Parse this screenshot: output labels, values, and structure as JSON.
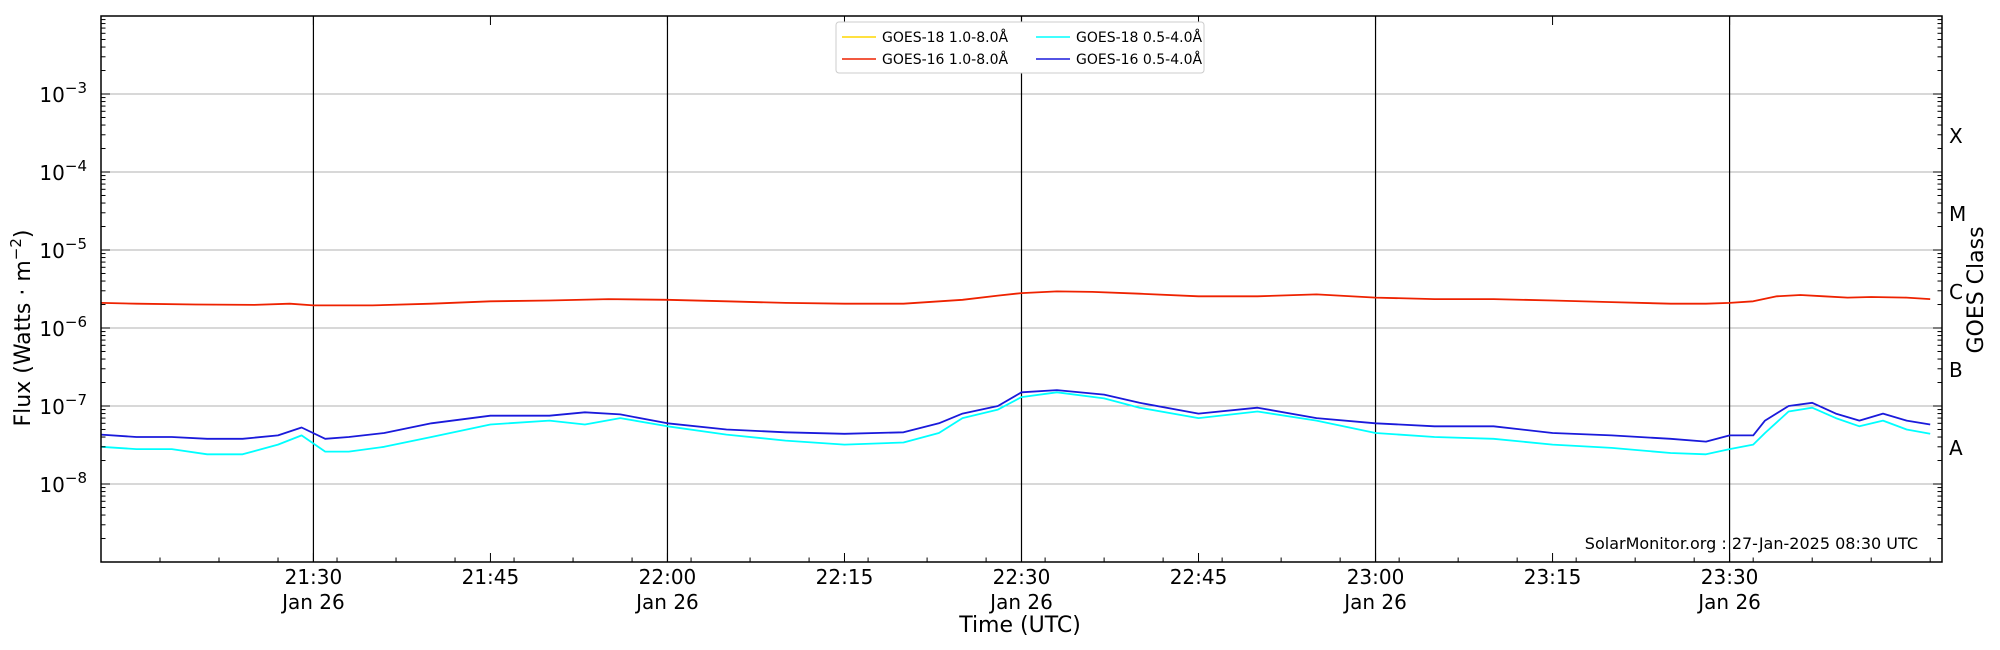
{
  "chart_data": {
    "type": "line",
    "x_scale": "time",
    "y_scale": "log",
    "xlabel": "Time (UTC)",
    "ylabel": "Flux (Watts · m",
    "ylabel_superscript": "−2",
    "ylabel_suffix": ")",
    "right_ylabel": "GOES Class",
    "xlim": [
      "2025-01-26 21:12",
      "2025-01-26 23:48"
    ],
    "ylim": [
      1e-09,
      0.01
    ],
    "grid": "horizontal at decades, vertical lines at half-hours",
    "legend_position": "top-center",
    "credit": "SolarMonitor.org : 27-Jan-2025 08:30 UTC",
    "x_ticks": [
      {
        "time": "2025-01-26 21:30",
        "label": "21:30",
        "date": "Jan 26"
      },
      {
        "time": "2025-01-26 21:45",
        "label": "21:45",
        "date": ""
      },
      {
        "time": "2025-01-26 22:00",
        "label": "22:00",
        "date": "Jan 26"
      },
      {
        "time": "2025-01-26 22:15",
        "label": "22:15",
        "date": ""
      },
      {
        "time": "2025-01-26 22:30",
        "label": "22:30",
        "date": "Jan 26"
      },
      {
        "time": "2025-01-26 22:45",
        "label": "22:45",
        "date": ""
      },
      {
        "time": "2025-01-26 23:00",
        "label": "23:00",
        "date": "Jan 26"
      },
      {
        "time": "2025-01-26 23:15",
        "label": "23:15",
        "date": ""
      },
      {
        "time": "2025-01-26 23:30",
        "label": "23:30",
        "date": "Jan 26"
      }
    ],
    "y_ticks": [
      {
        "value": 1e-08,
        "base": "10",
        "exp": "−8"
      },
      {
        "value": 1e-07,
        "base": "10",
        "exp": "−7"
      },
      {
        "value": 1e-06,
        "base": "10",
        "exp": "−6"
      },
      {
        "value": 1e-05,
        "base": "10",
        "exp": "−5"
      },
      {
        "value": 0.0001,
        "base": "10",
        "exp": "−4"
      },
      {
        "value": 0.001,
        "base": "10",
        "exp": "−3"
      }
    ],
    "goes_classes": [
      {
        "label": "A",
        "value": 3e-08
      },
      {
        "label": "B",
        "value": 3e-07
      },
      {
        "label": "C",
        "value": 3e-06
      },
      {
        "label": "M",
        "value": 3e-05
      },
      {
        "label": "X",
        "value": 0.0003
      }
    ],
    "vertical_lines": [
      "2025-01-26 21:30",
      "2025-01-26 22:00",
      "2025-01-26 22:30",
      "2025-01-26 23:00",
      "2025-01-26 23:30"
    ],
    "series": [
      {
        "name": "GOES-18 1.0-8.0Å",
        "color": "#ffd700",
        "x": [],
        "y": []
      },
      {
        "name": "GOES-16 1.0-8.0Å",
        "color": "#ee2200",
        "x": [
          "2025-01-26 21:12",
          "2025-01-26 21:15",
          "2025-01-26 21:20",
          "2025-01-26 21:25",
          "2025-01-26 21:28",
          "2025-01-26 21:30",
          "2025-01-26 21:35",
          "2025-01-26 21:40",
          "2025-01-26 21:45",
          "2025-01-26 21:50",
          "2025-01-26 21:55",
          "2025-01-26 22:00",
          "2025-01-26 22:05",
          "2025-01-26 22:10",
          "2025-01-26 22:15",
          "2025-01-26 22:20",
          "2025-01-26 22:25",
          "2025-01-26 22:28",
          "2025-01-26 22:30",
          "2025-01-26 22:33",
          "2025-01-26 22:36",
          "2025-01-26 22:40",
          "2025-01-26 22:45",
          "2025-01-26 22:50",
          "2025-01-26 22:55",
          "2025-01-26 23:00",
          "2025-01-26 23:05",
          "2025-01-26 23:10",
          "2025-01-26 23:15",
          "2025-01-26 23:20",
          "2025-01-26 23:25",
          "2025-01-26 23:28",
          "2025-01-26 23:30",
          "2025-01-26 23:32",
          "2025-01-26 23:34",
          "2025-01-26 23:36",
          "2025-01-26 23:38",
          "2025-01-26 23:40",
          "2025-01-26 23:42",
          "2025-01-26 23:45",
          "2025-01-26 23:47"
        ],
        "y": [
          2.1e-06,
          2.05e-06,
          2e-06,
          1.98e-06,
          2.05e-06,
          1.95e-06,
          1.95e-06,
          2.05e-06,
          2.2e-06,
          2.25e-06,
          2.35e-06,
          2.3e-06,
          2.2e-06,
          2.1e-06,
          2.05e-06,
          2.05e-06,
          2.3e-06,
          2.6e-06,
          2.8e-06,
          2.95e-06,
          2.9e-06,
          2.75e-06,
          2.55e-06,
          2.55e-06,
          2.7e-06,
          2.45e-06,
          2.35e-06,
          2.35e-06,
          2.25e-06,
          2.15e-06,
          2.05e-06,
          2.05e-06,
          2.1e-06,
          2.2e-06,
          2.55e-06,
          2.65e-06,
          2.55e-06,
          2.45e-06,
          2.5e-06,
          2.45e-06,
          2.35e-06
        ]
      },
      {
        "name": "GOES-18 0.5-4.0Å",
        "color": "#00ffff",
        "x": [
          "2025-01-26 21:12",
          "2025-01-26 21:15",
          "2025-01-26 21:18",
          "2025-01-26 21:21",
          "2025-01-26 21:24",
          "2025-01-26 21:27",
          "2025-01-26 21:29",
          "2025-01-26 21:31",
          "2025-01-26 21:33",
          "2025-01-26 21:36",
          "2025-01-26 21:40",
          "2025-01-26 21:45",
          "2025-01-26 21:50",
          "2025-01-26 21:53",
          "2025-01-26 21:56",
          "2025-01-26 22:00",
          "2025-01-26 22:05",
          "2025-01-26 22:10",
          "2025-01-26 22:15",
          "2025-01-26 22:20",
          "2025-01-26 22:23",
          "2025-01-26 22:25",
          "2025-01-26 22:28",
          "2025-01-26 22:30",
          "2025-01-26 22:33",
          "2025-01-26 22:37",
          "2025-01-26 22:40",
          "2025-01-26 22:45",
          "2025-01-26 22:50",
          "2025-01-26 22:55",
          "2025-01-26 23:00",
          "2025-01-26 23:05",
          "2025-01-26 23:10",
          "2025-01-26 23:15",
          "2025-01-26 23:20",
          "2025-01-26 23:25",
          "2025-01-26 23:28",
          "2025-01-26 23:30",
          "2025-01-26 23:32",
          "2025-01-26 23:33",
          "2025-01-26 23:35",
          "2025-01-26 23:37",
          "2025-01-26 23:39",
          "2025-01-26 23:41",
          "2025-01-26 23:43",
          "2025-01-26 23:45",
          "2025-01-26 23:47"
        ],
        "y": [
          3e-08,
          2.8e-08,
          2.8e-08,
          2.4e-08,
          2.4e-08,
          3.2e-08,
          4.2e-08,
          2.6e-08,
          2.6e-08,
          3e-08,
          4e-08,
          5.8e-08,
          6.5e-08,
          5.8e-08,
          7e-08,
          5.5e-08,
          4.3e-08,
          3.6e-08,
          3.2e-08,
          3.4e-08,
          4.5e-08,
          7e-08,
          9e-08,
          1.3e-07,
          1.5e-07,
          1.25e-07,
          9.5e-08,
          7e-08,
          8.5e-08,
          6.5e-08,
          4.5e-08,
          4e-08,
          3.8e-08,
          3.2e-08,
          2.9e-08,
          2.5e-08,
          2.4e-08,
          2.8e-08,
          3.2e-08,
          4.5e-08,
          8.5e-08,
          9.5e-08,
          7e-08,
          5.5e-08,
          6.5e-08,
          5e-08,
          4.4e-08
        ]
      },
      {
        "name": "GOES-16 0.5-4.0Å",
        "color": "#1a1adb",
        "x": [
          "2025-01-26 21:12",
          "2025-01-26 21:15",
          "2025-01-26 21:18",
          "2025-01-26 21:21",
          "2025-01-26 21:24",
          "2025-01-26 21:27",
          "2025-01-26 21:29",
          "2025-01-26 21:31",
          "2025-01-26 21:33",
          "2025-01-26 21:36",
          "2025-01-26 21:40",
          "2025-01-26 21:45",
          "2025-01-26 21:50",
          "2025-01-26 21:53",
          "2025-01-26 21:56",
          "2025-01-26 22:00",
          "2025-01-26 22:05",
          "2025-01-26 22:10",
          "2025-01-26 22:15",
          "2025-01-26 22:20",
          "2025-01-26 22:23",
          "2025-01-26 22:25",
          "2025-01-26 22:28",
          "2025-01-26 22:30",
          "2025-01-26 22:33",
          "2025-01-26 22:37",
          "2025-01-26 22:40",
          "2025-01-26 22:45",
          "2025-01-26 22:50",
          "2025-01-26 22:55",
          "2025-01-26 23:00",
          "2025-01-26 23:05",
          "2025-01-26 23:10",
          "2025-01-26 23:15",
          "2025-01-26 23:20",
          "2025-01-26 23:25",
          "2025-01-26 23:28",
          "2025-01-26 23:30",
          "2025-01-26 23:32",
          "2025-01-26 23:33",
          "2025-01-26 23:35",
          "2025-01-26 23:37",
          "2025-01-26 23:39",
          "2025-01-26 23:41",
          "2025-01-26 23:43",
          "2025-01-26 23:45",
          "2025-01-26 23:47"
        ],
        "y": [
          4.3e-08,
          4e-08,
          4e-08,
          3.8e-08,
          3.8e-08,
          4.2e-08,
          5.3e-08,
          3.8e-08,
          4e-08,
          4.5e-08,
          6e-08,
          7.5e-08,
          7.5e-08,
          8.3e-08,
          7.8e-08,
          6e-08,
          5e-08,
          4.6e-08,
          4.4e-08,
          4.6e-08,
          6e-08,
          8e-08,
          1e-07,
          1.5e-07,
          1.6e-07,
          1.4e-07,
          1.1e-07,
          8e-08,
          9.5e-08,
          7e-08,
          6e-08,
          5.5e-08,
          5.5e-08,
          4.5e-08,
          4.2e-08,
          3.8e-08,
          3.5e-08,
          4.2e-08,
          4.2e-08,
          6.5e-08,
          1e-07,
          1.1e-07,
          8e-08,
          6.5e-08,
          8e-08,
          6.5e-08,
          5.8e-08
        ]
      }
    ]
  }
}
